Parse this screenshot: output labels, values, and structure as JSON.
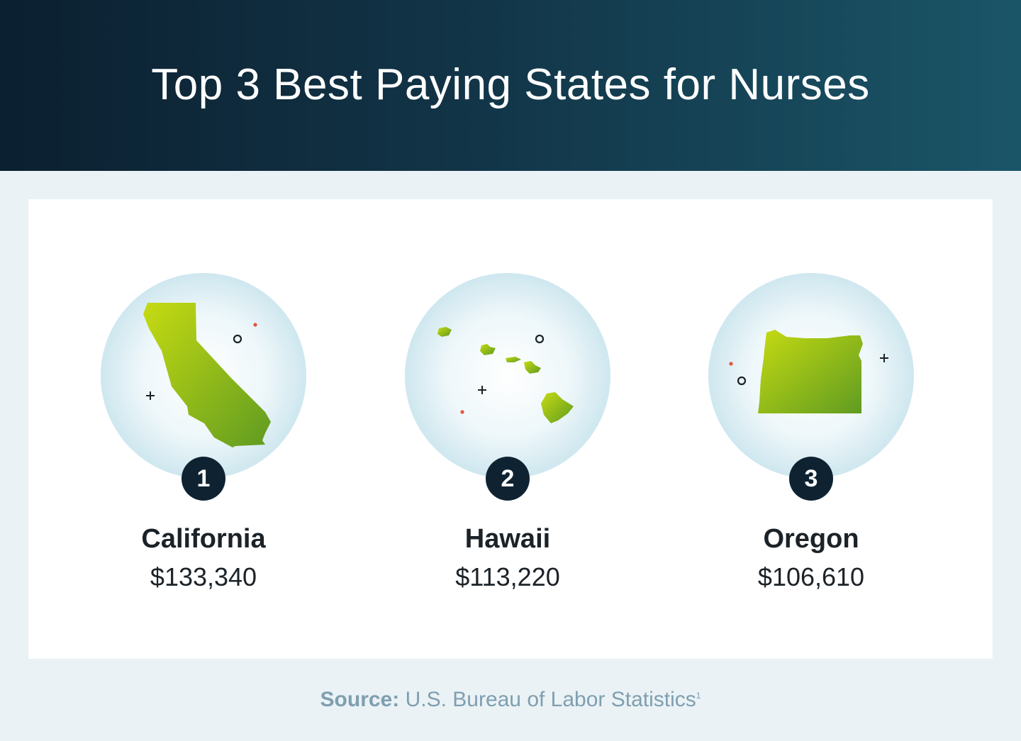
{
  "header": {
    "title": "Top 3 Best Paying States for Nurses"
  },
  "states": [
    {
      "rank": "1",
      "name": "California",
      "salary": "$133,340",
      "icon": "california-map-icon"
    },
    {
      "rank": "2",
      "name": "Hawaii",
      "salary": "$113,220",
      "icon": "hawaii-map-icon"
    },
    {
      "rank": "3",
      "name": "Oregon",
      "salary": "$106,610",
      "icon": "oregon-map-icon"
    }
  ],
  "source": {
    "label": "Source:",
    "text": "U.S. Bureau of Labor Statistics",
    "footnote": "1"
  },
  "colors": {
    "header_dark": "#0b2030",
    "header_light": "#1a5567",
    "map_green": "#8fc21a",
    "rank_badge": "#0f2231",
    "accent_dot": "#e5543d"
  }
}
